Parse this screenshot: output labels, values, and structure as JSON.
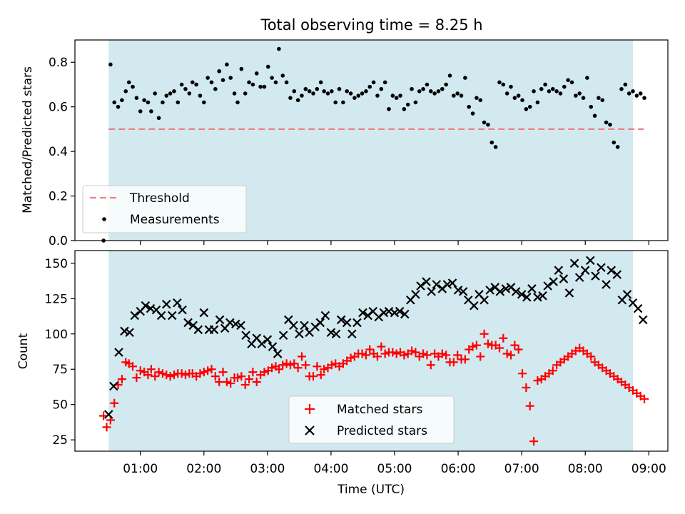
{
  "figure": {
    "title": "Total observing time = 8.25 h",
    "xlabel": "Time (UTC)",
    "xticks": [
      "01:00",
      "02:00",
      "03:00",
      "04:00",
      "05:00",
      "06:00",
      "07:00",
      "08:00",
      "09:00"
    ],
    "shaded_span_hours": [
      0.5,
      8.75
    ],
    "shade_color": "#d3e9f0"
  },
  "chart_data": [
    {
      "type": "scatter",
      "ylabel": "Matched/Predicted stars",
      "ylim": [
        0,
        0.9
      ],
      "yticks": [
        "0.0",
        "0.2",
        "0.4",
        "0.6",
        "0.8"
      ],
      "xlim": [
        -0.03,
        9.3
      ],
      "legend_position": "lower-left",
      "threshold": {
        "name": "Threshold",
        "value": 0.5,
        "x_range": [
          0.5,
          8.92
        ],
        "color": "#f08080"
      },
      "series": [
        {
          "name": "Measurements",
          "color": "#000000",
          "x": [
            0.42,
            0.53,
            0.59,
            0.65,
            0.71,
            0.77,
            0.82,
            0.88,
            0.94,
            1.0,
            1.06,
            1.12,
            1.17,
            1.23,
            1.29,
            1.35,
            1.41,
            1.47,
            1.53,
            1.59,
            1.65,
            1.71,
            1.77,
            1.82,
            1.88,
            1.94,
            2.0,
            2.06,
            2.12,
            2.18,
            2.24,
            2.3,
            2.36,
            2.42,
            2.48,
            2.53,
            2.59,
            2.65,
            2.71,
            2.77,
            2.83,
            2.89,
            2.95,
            3.01,
            3.07,
            3.13,
            3.18,
            3.24,
            3.3,
            3.36,
            3.42,
            3.48,
            3.54,
            3.6,
            3.66,
            3.72,
            3.78,
            3.84,
            3.89,
            3.95,
            4.01,
            4.07,
            4.13,
            4.19,
            4.25,
            4.31,
            4.37,
            4.43,
            4.49,
            4.55,
            4.61,
            4.67,
            4.73,
            4.79,
            4.85,
            4.91,
            4.97,
            5.03,
            5.09,
            5.15,
            5.21,
            5.27,
            5.33,
            5.39,
            5.45,
            5.51,
            5.57,
            5.63,
            5.69,
            5.75,
            5.81,
            5.87,
            5.93,
            5.99,
            6.05,
            6.11,
            6.17,
            6.23,
            6.29,
            6.35,
            6.41,
            6.47,
            6.53,
            6.59,
            6.65,
            6.71,
            6.77,
            6.83,
            6.89,
            6.95,
            7.01,
            7.07,
            7.13,
            7.19,
            7.25,
            7.31,
            7.37,
            7.43,
            7.49,
            7.55,
            7.61,
            7.67,
            7.73,
            7.79,
            7.85,
            7.91,
            7.97,
            8.03,
            8.09,
            8.15,
            8.21,
            8.27,
            8.33,
            8.39,
            8.45,
            8.51,
            8.57,
            8.63,
            8.69,
            8.75,
            8.81,
            8.87,
            8.93
          ],
          "y": [
            0.0,
            0.79,
            0.62,
            0.6,
            0.63,
            0.67,
            0.71,
            0.69,
            0.64,
            0.58,
            0.63,
            0.62,
            0.58,
            0.66,
            0.55,
            0.62,
            0.65,
            0.66,
            0.67,
            0.62,
            0.7,
            0.68,
            0.66,
            0.71,
            0.7,
            0.65,
            0.62,
            0.73,
            0.71,
            0.68,
            0.76,
            0.72,
            0.79,
            0.73,
            0.66,
            0.62,
            0.77,
            0.66,
            0.71,
            0.7,
            0.75,
            0.69,
            0.69,
            0.78,
            0.73,
            0.71,
            0.86,
            0.74,
            0.71,
            0.64,
            0.67,
            0.63,
            0.65,
            0.68,
            0.67,
            0.66,
            0.68,
            0.71,
            0.67,
            0.66,
            0.67,
            0.62,
            0.68,
            0.62,
            0.67,
            0.66,
            0.64,
            0.65,
            0.66,
            0.67,
            0.69,
            0.71,
            0.65,
            0.68,
            0.71,
            0.59,
            0.65,
            0.64,
            0.65,
            0.59,
            0.61,
            0.68,
            0.62,
            0.67,
            0.68,
            0.7,
            0.67,
            0.66,
            0.67,
            0.68,
            0.7,
            0.74,
            0.65,
            0.66,
            0.65,
            0.73,
            0.6,
            0.57,
            0.64,
            0.63,
            0.53,
            0.52,
            0.44,
            0.42,
            0.71,
            0.7,
            0.66,
            0.69,
            0.64,
            0.65,
            0.63,
            0.59,
            0.6,
            0.67,
            0.62,
            0.68,
            0.7,
            0.67,
            0.68,
            0.67,
            0.66,
            0.69,
            0.72,
            0.71,
            0.65,
            0.66,
            0.64,
            0.73,
            0.6,
            0.56,
            0.64,
            0.63,
            0.53,
            0.52,
            0.44,
            0.42,
            0.68,
            0.7,
            0.66,
            0.67,
            0.65,
            0.66,
            0.64
          ]
        }
      ]
    },
    {
      "type": "scatter",
      "ylabel": "Count",
      "ylim": [
        17,
        159
      ],
      "yticks": [
        "25",
        "50",
        "75",
        "100",
        "125",
        "150"
      ],
      "xlim": [
        -0.03,
        9.3
      ],
      "legend_position": "lower-center",
      "series": [
        {
          "name": "Matched stars",
          "color": "#ff0000",
          "marker": "+",
          "x": [
            0.42,
            0.47,
            0.53,
            0.59,
            0.65,
            0.71,
            0.77,
            0.82,
            0.88,
            0.94,
            1.0,
            1.06,
            1.12,
            1.17,
            1.23,
            1.29,
            1.35,
            1.41,
            1.47,
            1.53,
            1.59,
            1.65,
            1.71,
            1.77,
            1.82,
            1.88,
            1.94,
            2.0,
            2.06,
            2.12,
            2.18,
            2.24,
            2.3,
            2.36,
            2.42,
            2.48,
            2.53,
            2.59,
            2.65,
            2.71,
            2.77,
            2.83,
            2.89,
            2.95,
            3.01,
            3.07,
            3.13,
            3.18,
            3.24,
            3.3,
            3.36,
            3.42,
            3.48,
            3.54,
            3.6,
            3.66,
            3.72,
            3.78,
            3.84,
            3.89,
            3.95,
            4.01,
            4.07,
            4.13,
            4.19,
            4.25,
            4.31,
            4.37,
            4.43,
            4.49,
            4.55,
            4.61,
            4.67,
            4.73,
            4.79,
            4.85,
            4.91,
            4.97,
            5.03,
            5.09,
            5.15,
            5.21,
            5.27,
            5.33,
            5.39,
            5.45,
            5.51,
            5.57,
            5.63,
            5.69,
            5.75,
            5.81,
            5.87,
            5.93,
            5.99,
            6.05,
            6.11,
            6.17,
            6.23,
            6.29,
            6.35,
            6.41,
            6.47,
            6.53,
            6.59,
            6.65,
            6.71,
            6.77,
            6.83,
            6.89,
            6.95,
            7.01,
            7.07,
            7.13,
            7.19,
            7.25,
            7.31,
            7.37,
            7.43,
            7.49,
            7.55,
            7.61,
            7.67,
            7.73,
            7.79,
            7.85,
            7.91,
            7.97,
            8.03,
            8.09,
            8.15,
            8.21,
            8.27,
            8.33,
            8.39,
            8.45,
            8.51,
            8.57,
            8.63,
            8.69,
            8.75,
            8.81,
            8.87,
            8.93
          ],
          "y": [
            42,
            34,
            39,
            51,
            64,
            68,
            80,
            79,
            77,
            69,
            74,
            73,
            71,
            75,
            70,
            73,
            72,
            71,
            70,
            71,
            72,
            72,
            71,
            72,
            72,
            70,
            72,
            73,
            74,
            75,
            70,
            66,
            73,
            66,
            65,
            69,
            69,
            70,
            64,
            68,
            73,
            66,
            71,
            73,
            74,
            76,
            77,
            75,
            78,
            79,
            78,
            79,
            76,
            84,
            78,
            70,
            70,
            77,
            71,
            75,
            76,
            78,
            79,
            77,
            79,
            81,
            83,
            84,
            86,
            86,
            85,
            89,
            86,
            84,
            91,
            86,
            87,
            87,
            86,
            87,
            85,
            86,
            88,
            87,
            84,
            86,
            85,
            78,
            86,
            84,
            86,
            85,
            80,
            80,
            85,
            82,
            82,
            89,
            91,
            92,
            84,
            100,
            93,
            92,
            92,
            90,
            97,
            86,
            85,
            92,
            89,
            72,
            62,
            49,
            24,
            67,
            68,
            70,
            72,
            74,
            78,
            80,
            82,
            84,
            86,
            88,
            90,
            88,
            86,
            84,
            80,
            78,
            76,
            74,
            72,
            70,
            68,
            66,
            64,
            62,
            60,
            58,
            56,
            54
          ]
        },
        {
          "name": "Predicted stars",
          "color": "#000000",
          "marker": "x",
          "x": [
            0.5,
            0.58,
            0.66,
            0.75,
            0.83,
            0.91,
            1.0,
            1.08,
            1.16,
            1.25,
            1.33,
            1.41,
            1.5,
            1.58,
            1.66,
            1.75,
            1.83,
            1.91,
            2.0,
            2.08,
            2.16,
            2.25,
            2.33,
            2.41,
            2.5,
            2.58,
            2.66,
            2.75,
            2.83,
            2.91,
            3.0,
            3.08,
            3.16,
            3.25,
            3.33,
            3.41,
            3.5,
            3.58,
            3.66,
            3.75,
            3.83,
            3.91,
            4.0,
            4.08,
            4.16,
            4.25,
            4.33,
            4.41,
            4.5,
            4.58,
            4.66,
            4.75,
            4.83,
            4.91,
            5.0,
            5.08,
            5.16,
            5.25,
            5.33,
            5.41,
            5.5,
            5.58,
            5.66,
            5.75,
            5.83,
            5.91,
            6.0,
            6.08,
            6.16,
            6.25,
            6.33,
            6.41,
            6.5,
            6.58,
            6.66,
            6.75,
            6.83,
            6.91,
            7.0,
            7.08,
            7.16,
            7.25,
            7.33,
            7.41,
            7.5,
            7.58,
            7.66,
            7.75,
            7.83,
            7.91,
            8.0,
            8.08,
            8.16,
            8.25,
            8.33,
            8.41,
            8.5,
            8.58,
            8.66,
            8.75,
            8.83,
            8.91
          ],
          "y": [
            43,
            63,
            87,
            102,
            101,
            113,
            116,
            120,
            118,
            117,
            113,
            121,
            113,
            122,
            117,
            108,
            106,
            103,
            115,
            103,
            103,
            110,
            104,
            108,
            107,
            106,
            99,
            93,
            97,
            93,
            96,
            91,
            86,
            99,
            110,
            106,
            100,
            106,
            101,
            105,
            108,
            113,
            101,
            100,
            110,
            108,
            100,
            108,
            115,
            113,
            116,
            112,
            115,
            116,
            115,
            116,
            114,
            124,
            128,
            134,
            137,
            130,
            135,
            132,
            135,
            136,
            131,
            130,
            124,
            120,
            128,
            124,
            131,
            133,
            130,
            132,
            133,
            130,
            128,
            126,
            132,
            126,
            127,
            134,
            137,
            145,
            139,
            129,
            150,
            140,
            145,
            152,
            141,
            147,
            135,
            145,
            142,
            124,
            128,
            122,
            118,
            110
          ]
        }
      ]
    }
  ]
}
